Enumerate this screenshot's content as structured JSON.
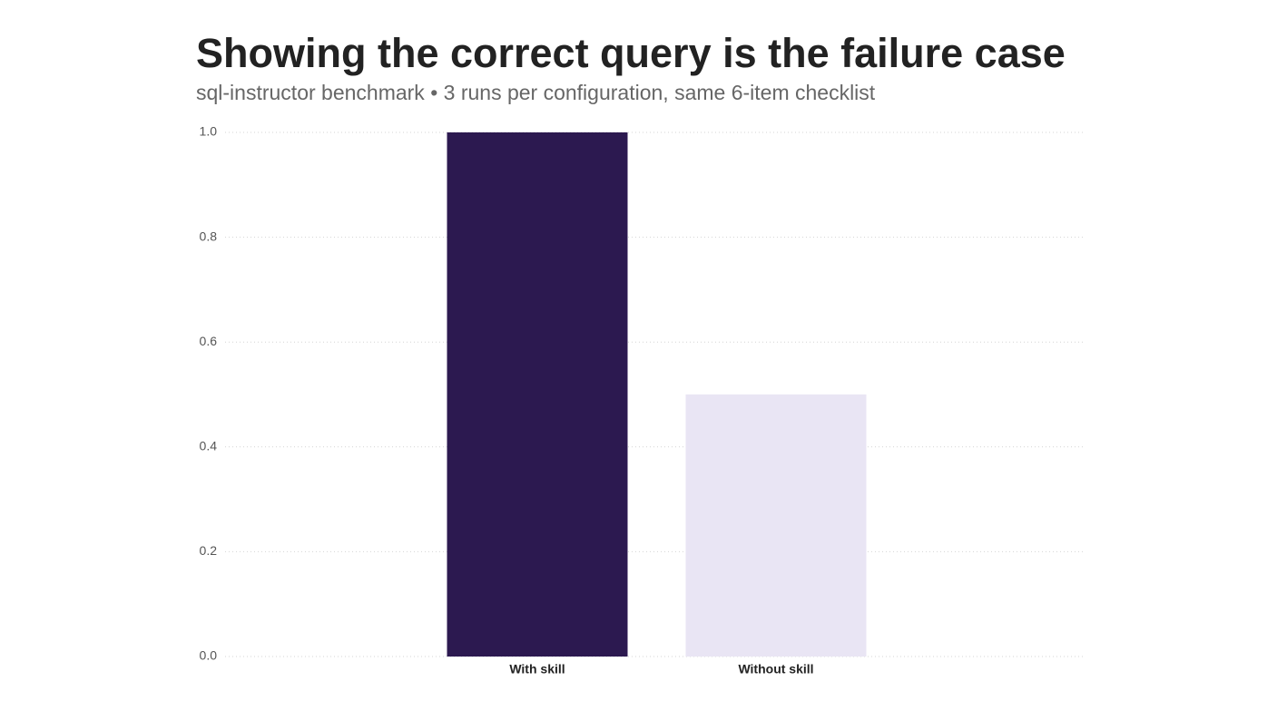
{
  "chart_data": {
    "type": "bar",
    "title": "Showing the correct query is the failure case",
    "subtitle": "sql-instructor benchmark • 3 runs per configuration, same 6-item checklist",
    "categories": [
      "With skill",
      "Without skill"
    ],
    "values": [
      1.0,
      0.5
    ],
    "colors": [
      "#2c1950",
      "#e9e5f4"
    ],
    "ylim": [
      0,
      1
    ],
    "yticks": [
      {
        "value": 0,
        "label": "0.0"
      },
      0.2,
      0.4,
      0.6,
      0.8,
      {
        "value": 1,
        "label": "1.0"
      }
    ],
    "grid": true
  }
}
